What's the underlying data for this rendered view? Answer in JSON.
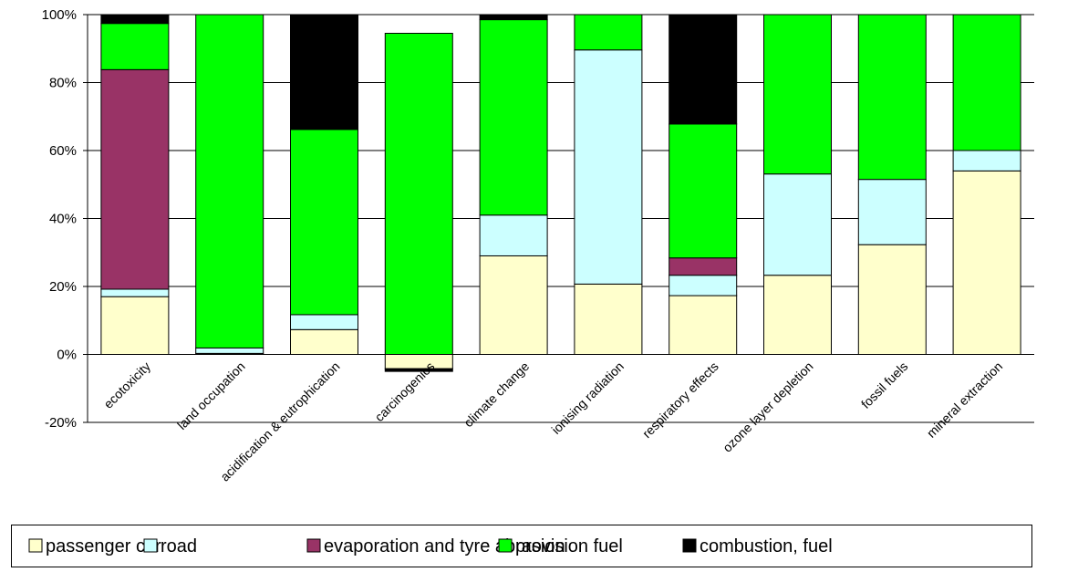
{
  "chart_data": {
    "type": "bar",
    "stacked": true,
    "percent": true,
    "categories": [
      "ecotoxicity",
      "land occupation",
      "acidification & eutrophication",
      "carcinogenics",
      "climate change",
      "ionising radiation",
      "respiratory effects",
      "ozone layer depletion",
      "fossil fuels",
      "mineral extraction"
    ],
    "series": [
      {
        "name": "passenger car",
        "color": "#ffffcc",
        "values": [
          17,
          0.3,
          7.3,
          -4.2,
          29,
          20.7,
          17.3,
          23.3,
          32.3,
          54
        ]
      },
      {
        "name": "road",
        "color": "#ccffff",
        "values": [
          2.2,
          1.6,
          4.4,
          0,
          12,
          68.9,
          6,
          29.8,
          19.2,
          6
        ]
      },
      {
        "name": "evaporation and tyre abrasion",
        "color": "#993366",
        "values": [
          64.6,
          0,
          0,
          0,
          0,
          0,
          5.1,
          0,
          0,
          0
        ]
      },
      {
        "name": "provision fuel",
        "color": "#00ff00",
        "values": [
          13.6,
          98.1,
          54.5,
          94.5,
          57.5,
          10.4,
          39.4,
          46.9,
          48.5,
          40
        ]
      },
      {
        "name": "combustion, fuel",
        "color": "#000000",
        "values": [
          2.6,
          0,
          33.8,
          -0.8,
          1.5,
          0,
          32.2,
          0,
          0,
          0
        ]
      }
    ],
    "ylim": [
      -20,
      100
    ],
    "yticks": [
      "-20%",
      "0%",
      "20%",
      "40%",
      "60%",
      "80%",
      "100%"
    ],
    "ytick_values": [
      -20,
      0,
      20,
      40,
      60,
      80,
      100
    ],
    "grid": true,
    "legend_position": "bottom"
  }
}
